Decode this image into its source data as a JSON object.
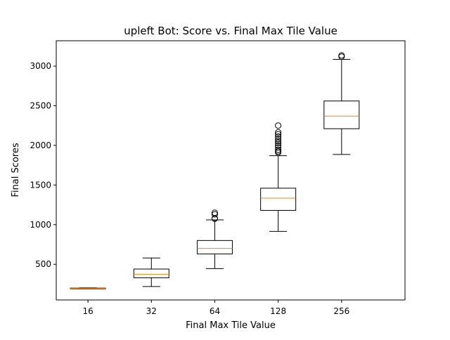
{
  "chart_data": {
    "type": "box",
    "title": "upleft Bot: Score vs. Final Max Tile Value",
    "xlabel": "Final Max Tile Value",
    "ylabel": "Final Scores",
    "ylim": [
      50,
      3320
    ],
    "yticks": [
      500,
      1000,
      1500,
      2000,
      2500,
      3000
    ],
    "categories": [
      "16",
      "32",
      "64",
      "128",
      "256"
    ],
    "boxes": [
      {
        "category": "16",
        "whisker_low": 193,
        "q1": 195,
        "median": 197,
        "q3": 200,
        "whisker_high": 203,
        "outliers": []
      },
      {
        "category": "32",
        "whisker_low": 220,
        "q1": 330,
        "median": 375,
        "q3": 440,
        "whisker_high": 580,
        "outliers": []
      },
      {
        "category": "64",
        "whisker_low": 445,
        "q1": 630,
        "median": 700,
        "q3": 800,
        "whisker_high": 1060,
        "outliers": [
          1075,
          1080,
          1130,
          1150
        ]
      },
      {
        "category": "128",
        "whisker_low": 915,
        "q1": 1180,
        "median": 1335,
        "q3": 1460,
        "whisker_high": 1870,
        "outliers": [
          1910,
          1925,
          1945,
          1975,
          2000,
          2030,
          2055,
          2080,
          2110,
          2140,
          2165,
          2250
        ]
      },
      {
        "category": "256",
        "whisker_low": 1885,
        "q1": 2210,
        "median": 2370,
        "q3": 2560,
        "whisker_high": 3085,
        "outliers": [
          3120,
          3135
        ]
      }
    ],
    "colors": {
      "box": "#000000",
      "median": "#ff7f0e",
      "outlier": "#000000"
    },
    "grid": false
  }
}
